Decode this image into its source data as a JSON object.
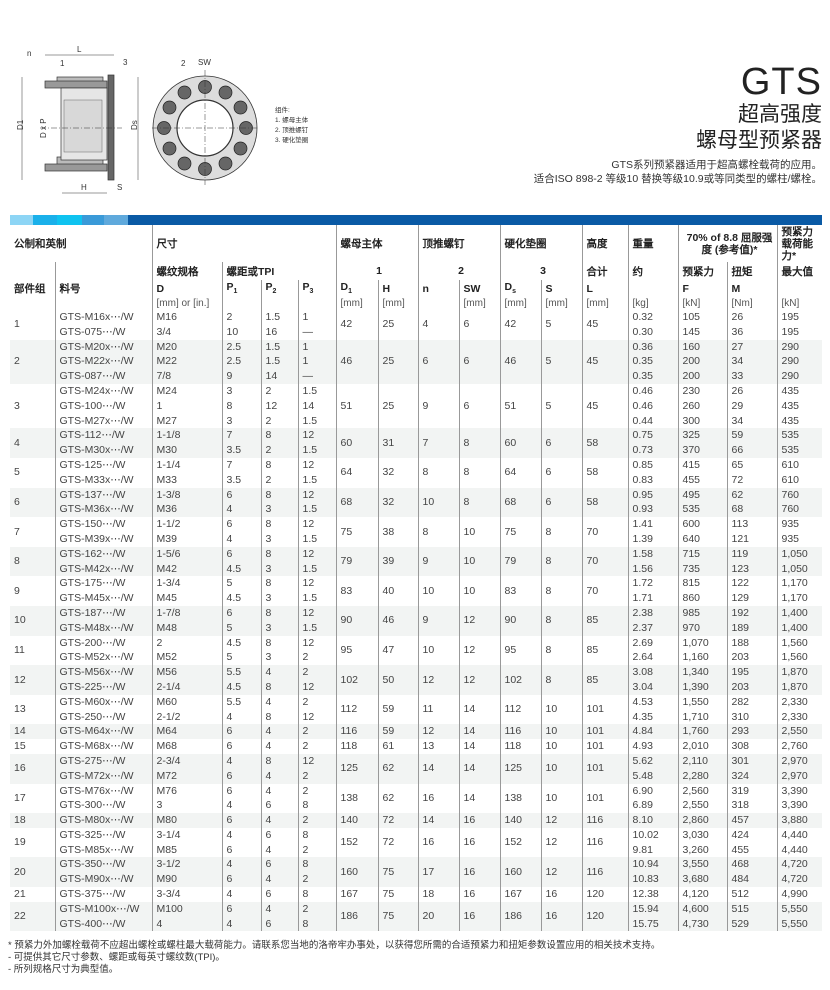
{
  "drawing": {
    "labels": {
      "n": "n",
      "part1": "1",
      "part3": "3",
      "part2": "2",
      "sw": "SW",
      "l": "L",
      "h": "H",
      "s": "S",
      "d1": "D1",
      "dxp": "D x P",
      "ds": "Ds"
    },
    "legend": {
      "title": "组件:",
      "items": [
        "1.  螺母主体",
        "2.  顶推螺钉",
        "3.  硬化垫圈"
      ]
    }
  },
  "title": {
    "code": "GTS",
    "line1": "超高强度",
    "line2": "螺母型预紧器",
    "desc1": "GTS系列预紧器适用于超高螺栓载荷的应用。",
    "desc2": "适合ISO 898-2 等级10 替换等级10.9或等同类型的螺柱/螺栓。"
  },
  "colors": {
    "bar": [
      "#8dd5f5",
      "#1ab0ea",
      "#0fc3f0",
      "#3a9ad8",
      "#5fa9dc",
      "#0a5aa5"
    ],
    "alt_row": "#f2f4f3"
  },
  "header": {
    "metric_imperial": "公制和英制",
    "dimensions": "尺寸",
    "nut_body": "螺母主体",
    "jack_bolt": "顶推螺钉",
    "washer": "硬化垫圈",
    "height": "高度",
    "weight": "重量",
    "yield": "70% of 8.8 屈服强度 (参考值)*",
    "capacity": "预紧力载荷能力*",
    "thread": "螺纹规格",
    "pitch": "螺距或TPI",
    "comp1": "1",
    "comp2": "2",
    "comp3": "3",
    "total": "合计",
    "approx": "约",
    "preload": "预紧力",
    "torque": "扭矩",
    "max": "最大值",
    "group": "部件组",
    "part": "料号",
    "D": "D",
    "P1": "P",
    "P2": "P",
    "P3": "P",
    "D1": "D",
    "H": "H",
    "n": "n",
    "SW": "SW",
    "Ds": "D",
    "S": "S",
    "L": "L",
    "F": "F",
    "M": "M",
    "sub1": "1",
    "sub2": "2",
    "sub3": "3",
    "subs": "s",
    "units": {
      "D": "[mm] or [in.]",
      "mm": "[mm]",
      "kg": "[kg]",
      "kN": "[kN]",
      "Nm": "[Nm]"
    }
  },
  "groups": [
    {
      "g": "1",
      "d1": "42",
      "h": "25",
      "n": "4",
      "sw": "6",
      "ds": "42",
      "s": "5",
      "l": "45",
      "rows": [
        [
          "GTS-M16x⋯/W",
          "M16",
          "2",
          "1.5",
          "1",
          "0.32",
          "105",
          "26",
          "195"
        ],
        [
          "GTS-075⋯/W",
          "3/4",
          "10",
          "16",
          "—",
          "0.30",
          "145",
          "36",
          "195"
        ]
      ]
    },
    {
      "g": "2",
      "d1": "46",
      "h": "25",
      "n": "6",
      "sw": "6",
      "ds": "46",
      "s": "5",
      "l": "45",
      "rows": [
        [
          "GTS-M20x⋯/W",
          "M20",
          "2.5",
          "1.5",
          "1",
          "0.36",
          "160",
          "27",
          "290"
        ],
        [
          "GTS-M22x⋯/W",
          "M22",
          "2.5",
          "1.5",
          "1",
          "0.35",
          "200",
          "34",
          "290"
        ],
        [
          "GTS-087⋯/W",
          "7/8",
          "9",
          "14",
          "—",
          "0.35",
          "200",
          "33",
          "290"
        ]
      ]
    },
    {
      "g": "3",
      "d1": "51",
      "h": "25",
      "n": "9",
      "sw": "6",
      "ds": "51",
      "s": "5",
      "l": "45",
      "rows": [
        [
          "GTS-M24x⋯/W",
          "M24",
          "3",
          "2",
          "1.5",
          "0.46",
          "230",
          "26",
          "435"
        ],
        [
          "GTS-100⋯/W",
          "1",
          "8",
          "12",
          "14",
          "0.46",
          "260",
          "29",
          "435"
        ],
        [
          "GTS-M27x⋯/W",
          "M27",
          "3",
          "2",
          "1.5",
          "0.44",
          "300",
          "34",
          "435"
        ]
      ]
    },
    {
      "g": "4",
      "d1": "60",
      "h": "31",
      "n": "7",
      "sw": "8",
      "ds": "60",
      "s": "6",
      "l": "58",
      "rows": [
        [
          "GTS-112⋯/W",
          "1-1/8",
          "7",
          "8",
          "12",
          "0.75",
          "325",
          "59",
          "535"
        ],
        [
          "GTS-M30x⋯/W",
          "M30",
          "3.5",
          "2",
          "1.5",
          "0.73",
          "370",
          "66",
          "535"
        ]
      ]
    },
    {
      "g": "5",
      "d1": "64",
      "h": "32",
      "n": "8",
      "sw": "8",
      "ds": "64",
      "s": "6",
      "l": "58",
      "rows": [
        [
          "GTS-125⋯/W",
          "1-1/4",
          "7",
          "8",
          "12",
          "0.85",
          "415",
          "65",
          "610"
        ],
        [
          "GTS-M33x⋯/W",
          "M33",
          "3.5",
          "2",
          "1.5",
          "0.83",
          "455",
          "72",
          "610"
        ]
      ]
    },
    {
      "g": "6",
      "d1": "68",
      "h": "32",
      "n": "10",
      "sw": "8",
      "ds": "68",
      "s": "6",
      "l": "58",
      "rows": [
        [
          "GTS-137⋯/W",
          "1-3/8",
          "6",
          "8",
          "12",
          "0.95",
          "495",
          "62",
          "760"
        ],
        [
          "GTS-M36x⋯/W",
          "M36",
          "4",
          "3",
          "1.5",
          "0.93",
          "535",
          "68",
          "760"
        ]
      ]
    },
    {
      "g": "7",
      "d1": "75",
      "h": "38",
      "n": "8",
      "sw": "10",
      "ds": "75",
      "s": "8",
      "l": "70",
      "rows": [
        [
          "GTS-150⋯/W",
          "1-1/2",
          "6",
          "8",
          "12",
          "1.41",
          "600",
          "113",
          "935"
        ],
        [
          "GTS-M39x⋯/W",
          "M39",
          "4",
          "3",
          "1.5",
          "1.39",
          "640",
          "121",
          "935"
        ]
      ]
    },
    {
      "g": "8",
      "d1": "79",
      "h": "39",
      "n": "9",
      "sw": "10",
      "ds": "79",
      "s": "8",
      "l": "70",
      "rows": [
        [
          "GTS-162⋯/W",
          "1-5/6",
          "6",
          "8",
          "12",
          "1.58",
          "715",
          "119",
          "1,050"
        ],
        [
          "GTS-M42x⋯/W",
          "M42",
          "4.5",
          "3",
          "1.5",
          "1.56",
          "735",
          "123",
          "1,050"
        ]
      ]
    },
    {
      "g": "9",
      "d1": "83",
      "h": "40",
      "n": "10",
      "sw": "10",
      "ds": "83",
      "s": "8",
      "l": "70",
      "rows": [
        [
          "GTS-175⋯/W",
          "1-3/4",
          "5",
          "8",
          "12",
          "1.72",
          "815",
          "122",
          "1,170"
        ],
        [
          "GTS-M45x⋯/W",
          "M45",
          "4.5",
          "3",
          "1.5",
          "1.71",
          "860",
          "129",
          "1,170"
        ]
      ]
    },
    {
      "g": "10",
      "d1": "90",
      "h": "46",
      "n": "9",
      "sw": "12",
      "ds": "90",
      "s": "8",
      "l": "85",
      "rows": [
        [
          "GTS-187⋯/W",
          "1-7/8",
          "6",
          "8",
          "12",
          "2.38",
          "985",
          "192",
          "1,400"
        ],
        [
          "GTS-M48x⋯/W",
          "M48",
          "5",
          "3",
          "1.5",
          "2.37",
          "970",
          "189",
          "1,400"
        ]
      ]
    },
    {
      "g": "11",
      "d1": "95",
      "h": "47",
      "n": "10",
      "sw": "12",
      "ds": "95",
      "s": "8",
      "l": "85",
      "rows": [
        [
          "GTS-200⋯/W",
          "2",
          "4.5",
          "8",
          "12",
          "2.69",
          "1,070",
          "188",
          "1,560"
        ],
        [
          "GTS-M52x⋯/W",
          "M52",
          "5",
          "3",
          "2",
          "2.64",
          "1,160",
          "203",
          "1,560"
        ]
      ]
    },
    {
      "g": "12",
      "d1": "102",
      "h": "50",
      "n": "12",
      "sw": "12",
      "ds": "102",
      "s": "8",
      "l": "85",
      "rows": [
        [
          "GTS-M56x⋯/W",
          "M56",
          "5.5",
          "4",
          "2",
          "3.08",
          "1,340",
          "195",
          "1,870"
        ],
        [
          "GTS-225⋯/W",
          "2-1/4",
          "4.5",
          "8",
          "12",
          "3.04",
          "1,390",
          "203",
          "1,870"
        ]
      ]
    },
    {
      "g": "13",
      "d1": "112",
      "h": "59",
      "n": "11",
      "sw": "14",
      "ds": "112",
      "s": "10",
      "l": "101",
      "rows": [
        [
          "GTS-M60x⋯/W",
          "M60",
          "5.5",
          "4",
          "2",
          "4.53",
          "1,550",
          "282",
          "2,330"
        ],
        [
          "GTS-250⋯/W",
          "2-1/2",
          "4",
          "8",
          "12",
          "4.35",
          "1,710",
          "310",
          "2,330"
        ]
      ]
    },
    {
      "g": "14",
      "d1": "116",
      "h": "59",
      "n": "12",
      "sw": "14",
      "ds": "116",
      "s": "10",
      "l": "101",
      "rows": [
        [
          "GTS-M64x⋯/W",
          "M64",
          "6",
          "4",
          "2",
          "4.84",
          "1,760",
          "293",
          "2,550"
        ]
      ]
    },
    {
      "g": "15",
      "d1": "118",
      "h": "61",
      "n": "13",
      "sw": "14",
      "ds": "118",
      "s": "10",
      "l": "101",
      "rows": [
        [
          "GTS-M68x⋯/W",
          "M68",
          "6",
          "4",
          "2",
          "4.93",
          "2,010",
          "308",
          "2,760"
        ]
      ]
    },
    {
      "g": "16",
      "d1": "125",
      "h": "62",
      "n": "14",
      "sw": "14",
      "ds": "125",
      "s": "10",
      "l": "101",
      "rows": [
        [
          "GTS-275⋯/W",
          "2-3/4",
          "4",
          "8",
          "12",
          "5.62",
          "2,110",
          "301",
          "2,970"
        ],
        [
          "GTS-M72x⋯/W",
          "M72",
          "6",
          "4",
          "2",
          "5.48",
          "2,280",
          "324",
          "2,970"
        ]
      ]
    },
    {
      "g": "17",
      "d1": "138",
      "h": "62",
      "n": "16",
      "sw": "14",
      "ds": "138",
      "s": "10",
      "l": "101",
      "rows": [
        [
          "GTS-M76x⋯/W",
          "M76",
          "6",
          "4",
          "2",
          "6.90",
          "2,560",
          "319",
          "3,390"
        ],
        [
          "GTS-300⋯/W",
          "3",
          "4",
          "6",
          "8",
          "6.89",
          "2,550",
          "318",
          "3,390"
        ]
      ]
    },
    {
      "g": "18",
      "d1": "140",
      "h": "72",
      "n": "14",
      "sw": "16",
      "ds": "140",
      "s": "12",
      "l": "116",
      "rows": [
        [
          "GTS-M80x⋯/W",
          "M80",
          "6",
          "4",
          "2",
          "8.10",
          "2,860",
          "457",
          "3,880"
        ]
      ]
    },
    {
      "g": "19",
      "d1": "152",
      "h": "72",
      "n": "16",
      "sw": "16",
      "ds": "152",
      "s": "12",
      "l": "116",
      "rows": [
        [
          "GTS-325⋯/W",
          "3-1/4",
          "4",
          "6",
          "8",
          "10.02",
          "3,030",
          "424",
          "4,440"
        ],
        [
          "GTS-M85x⋯/W",
          "M85",
          "6",
          "4",
          "2",
          "9.81",
          "3,260",
          "455",
          "4,440"
        ]
      ]
    },
    {
      "g": "20",
      "d1": "160",
      "h": "75",
      "n": "17",
      "sw": "16",
      "ds": "160",
      "s": "12",
      "l": "116",
      "rows": [
        [
          "GTS-350⋯/W",
          "3-1/2",
          "4",
          "6",
          "8",
          "10.94",
          "3,550",
          "468",
          "4,720"
        ],
        [
          "GTS-M90x⋯/W",
          "M90",
          "6",
          "4",
          "2",
          "10.83",
          "3,680",
          "484",
          "4,720"
        ]
      ]
    },
    {
      "g": "21",
      "d1": "167",
      "h": "75",
      "n": "18",
      "sw": "16",
      "ds": "167",
      "s": "16",
      "l": "120",
      "rows": [
        [
          "GTS-375⋯/W",
          "3-3/4",
          "4",
          "6",
          "8",
          "12.38",
          "4,120",
          "512",
          "4,990"
        ]
      ]
    },
    {
      "g": "22",
      "d1": "186",
      "h": "75",
      "n": "20",
      "sw": "16",
      "ds": "186",
      "s": "16",
      "l": "120",
      "rows": [
        [
          "GTS-M100x⋯/W",
          "M100",
          "6",
          "4",
          "2",
          "15.94",
          "4,600",
          "515",
          "5,550"
        ],
        [
          "GTS-400⋯/W",
          "4",
          "4",
          "6",
          "8",
          "15.75",
          "4,730",
          "529",
          "5,550"
        ]
      ]
    }
  ],
  "notes": [
    "* 预紧力外加螺栓载荷不应超出螺栓或螺柱最大载荷能力。请联系您当地的洛帝牢办事处，以获得您所需的合适预紧力和扭矩参数设置应用的相关技术支持。",
    "- 可提供其它尺寸参数、螺距或每英寸螺纹数(TPI)。",
    "- 所列规格尺寸为典型值。"
  ]
}
